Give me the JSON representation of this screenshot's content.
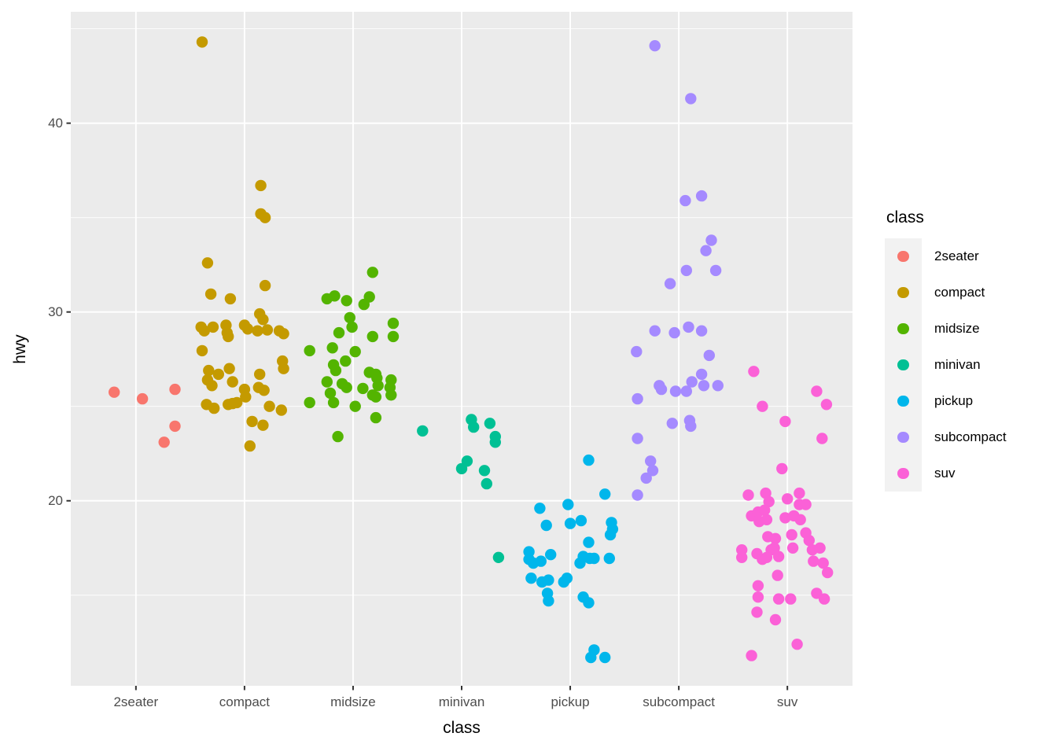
{
  "page": {
    "background": "#FFFFFF"
  },
  "chart_data": {
    "type": "scatter",
    "title": "",
    "xlabel": "class",
    "ylabel": "hwy",
    "categories": [
      "2seater",
      "compact",
      "midsize",
      "minivan",
      "pickup",
      "subcompact",
      "suv"
    ],
    "xlim": [
      0.4,
      7.6
    ],
    "ylim": [
      10.2,
      45.9
    ],
    "y_major_ticks": [
      {
        "value": 20,
        "label": "20"
      },
      {
        "value": 30,
        "label": "30"
      },
      {
        "value": 40,
        "label": "40"
      }
    ],
    "y_minor_ticks": [
      15,
      25,
      35,
      45
    ],
    "grid": {
      "horizontal": "major and minor",
      "vertical": "major at each category"
    },
    "panel_background": "#EBEBEB",
    "grid_color": "#FFFFFF",
    "tick_label_color": "#4D4D4D",
    "tick_mark_color": "#333333",
    "point_radius": 7.2,
    "legend": {
      "title": "class",
      "position": "right",
      "key_background": "#F2F2F2"
    },
    "series": [
      {
        "name": "2seater",
        "color": "#F8766D",
        "points": [
          [
            0.8,
            25.75
          ],
          [
            1.06,
            25.4
          ],
          [
            1.36,
            25.9
          ],
          [
            1.36,
            23.95
          ],
          [
            1.26,
            23.1
          ]
        ]
      },
      {
        "name": "compact",
        "color": "#C49A00",
        "points": [
          [
            1.61,
            44.3
          ],
          [
            2.15,
            36.7
          ],
          [
            2.15,
            35.2
          ],
          [
            2.19,
            35.0
          ],
          [
            1.66,
            32.6
          ],
          [
            2.19,
            31.4
          ],
          [
            1.69,
            30.95
          ],
          [
            1.87,
            30.7
          ],
          [
            2.14,
            29.9
          ],
          [
            2.17,
            29.6
          ],
          [
            1.6,
            29.2
          ],
          [
            1.63,
            29.0
          ],
          [
            1.71,
            29.2
          ],
          [
            1.83,
            29.3
          ],
          [
            1.84,
            28.9
          ],
          [
            2.0,
            29.3
          ],
          [
            2.03,
            29.1
          ],
          [
            2.12,
            29.0
          ],
          [
            2.21,
            29.05
          ],
          [
            2.32,
            29.0
          ],
          [
            2.36,
            28.85
          ],
          [
            1.85,
            28.7
          ],
          [
            1.61,
            27.95
          ],
          [
            2.35,
            27.4
          ],
          [
            2.36,
            27.0
          ],
          [
            1.67,
            26.9
          ],
          [
            1.76,
            26.7
          ],
          [
            1.86,
            27.0
          ],
          [
            2.14,
            26.7
          ],
          [
            1.66,
            26.4
          ],
          [
            1.7,
            26.1
          ],
          [
            1.89,
            26.3
          ],
          [
            2.0,
            25.9
          ],
          [
            2.01,
            25.5
          ],
          [
            2.13,
            26.0
          ],
          [
            2.18,
            25.85
          ],
          [
            1.65,
            25.1
          ],
          [
            1.72,
            24.9
          ],
          [
            1.85,
            25.1
          ],
          [
            1.89,
            25.15
          ],
          [
            1.93,
            25.2
          ],
          [
            2.23,
            25.0
          ],
          [
            2.34,
            24.8
          ],
          [
            2.07,
            24.2
          ],
          [
            2.17,
            24.0
          ],
          [
            2.05,
            22.9
          ]
        ]
      },
      {
        "name": "midsize",
        "color": "#53B400",
        "points": [
          [
            3.18,
            32.1
          ],
          [
            2.76,
            30.7
          ],
          [
            2.83,
            30.85
          ],
          [
            2.94,
            30.6
          ],
          [
            3.15,
            30.8
          ],
          [
            3.1,
            30.4
          ],
          [
            2.97,
            29.7
          ],
          [
            2.99,
            29.2
          ],
          [
            3.37,
            29.4
          ],
          [
            2.87,
            28.9
          ],
          [
            3.18,
            28.7
          ],
          [
            3.37,
            28.7
          ],
          [
            2.6,
            27.95
          ],
          [
            2.81,
            28.1
          ],
          [
            3.02,
            27.9
          ],
          [
            2.93,
            27.4
          ],
          [
            2.82,
            27.2
          ],
          [
            2.84,
            26.9
          ],
          [
            3.15,
            26.8
          ],
          [
            3.21,
            26.7
          ],
          [
            2.76,
            26.3
          ],
          [
            3.22,
            26.5
          ],
          [
            3.23,
            26.1
          ],
          [
            3.35,
            26.4
          ],
          [
            2.9,
            26.2
          ],
          [
            2.94,
            26.0
          ],
          [
            2.79,
            25.7
          ],
          [
            3.09,
            25.95
          ],
          [
            3.18,
            25.6
          ],
          [
            3.34,
            26.0
          ],
          [
            3.35,
            25.6
          ],
          [
            2.6,
            25.2
          ],
          [
            2.82,
            25.2
          ],
          [
            3.02,
            25.0
          ],
          [
            3.21,
            25.5
          ],
          [
            3.21,
            24.4
          ],
          [
            2.86,
            23.4
          ]
        ]
      },
      {
        "name": "minivan",
        "color": "#00C094",
        "points": [
          [
            3.64,
            23.7
          ],
          [
            4.09,
            24.3
          ],
          [
            4.11,
            23.9
          ],
          [
            4.26,
            24.1
          ],
          [
            4.31,
            23.4
          ],
          [
            4.31,
            23.1
          ],
          [
            4.05,
            22.1
          ],
          [
            4.0,
            21.7
          ],
          [
            4.21,
            21.6
          ],
          [
            4.23,
            20.9
          ],
          [
            4.34,
            17.0
          ]
        ]
      },
      {
        "name": "pickup",
        "color": "#00B6EB",
        "points": [
          [
            5.17,
            22.15
          ],
          [
            5.32,
            20.35
          ],
          [
            4.98,
            19.8
          ],
          [
            4.72,
            19.6
          ],
          [
            5.0,
            18.8
          ],
          [
            5.1,
            18.95
          ],
          [
            4.78,
            18.7
          ],
          [
            5.38,
            18.85
          ],
          [
            5.39,
            18.5
          ],
          [
            5.37,
            18.2
          ],
          [
            5.17,
            17.8
          ],
          [
            4.62,
            17.3
          ],
          [
            4.62,
            16.9
          ],
          [
            4.66,
            16.7
          ],
          [
            4.73,
            16.8
          ],
          [
            4.82,
            17.15
          ],
          [
            5.12,
            17.05
          ],
          [
            5.09,
            16.7
          ],
          [
            5.18,
            16.95
          ],
          [
            5.22,
            16.95
          ],
          [
            5.36,
            16.95
          ],
          [
            4.64,
            15.9
          ],
          [
            4.74,
            15.7
          ],
          [
            4.8,
            15.8
          ],
          [
            4.94,
            15.7
          ],
          [
            4.97,
            15.9
          ],
          [
            4.79,
            15.1
          ],
          [
            4.8,
            14.7
          ],
          [
            5.12,
            14.9
          ],
          [
            5.17,
            14.6
          ],
          [
            5.22,
            12.1
          ],
          [
            5.19,
            11.7
          ],
          [
            5.32,
            11.7
          ]
        ]
      },
      {
        "name": "subcompact",
        "color": "#A58AFF",
        "points": [
          [
            5.78,
            44.1
          ],
          [
            6.11,
            41.3
          ],
          [
            6.21,
            36.15
          ],
          [
            6.06,
            35.9
          ],
          [
            6.3,
            33.8
          ],
          [
            6.25,
            33.25
          ],
          [
            6.07,
            32.2
          ],
          [
            6.34,
            32.2
          ],
          [
            5.92,
            31.5
          ],
          [
            5.78,
            29.0
          ],
          [
            5.96,
            28.9
          ],
          [
            6.09,
            29.2
          ],
          [
            6.21,
            29.0
          ],
          [
            5.61,
            27.9
          ],
          [
            6.28,
            27.7
          ],
          [
            6.21,
            26.7
          ],
          [
            5.82,
            26.1
          ],
          [
            5.84,
            25.9
          ],
          [
            5.97,
            25.8
          ],
          [
            6.07,
            25.8
          ],
          [
            6.12,
            26.3
          ],
          [
            6.23,
            26.1
          ],
          [
            6.36,
            26.1
          ],
          [
            5.62,
            25.4
          ],
          [
            5.94,
            24.1
          ],
          [
            6.1,
            24.25
          ],
          [
            6.11,
            23.95
          ],
          [
            5.62,
            23.3
          ],
          [
            5.74,
            22.1
          ],
          [
            5.76,
            21.6
          ],
          [
            5.7,
            21.2
          ],
          [
            5.62,
            20.3
          ]
        ]
      },
      {
        "name": "suv",
        "color": "#FB61D7",
        "points": [
          [
            6.69,
            26.85
          ],
          [
            7.27,
            25.8
          ],
          [
            6.77,
            25.0
          ],
          [
            7.36,
            25.1
          ],
          [
            6.98,
            24.2
          ],
          [
            7.32,
            23.3
          ],
          [
            6.95,
            21.7
          ],
          [
            6.64,
            20.3
          ],
          [
            6.8,
            20.4
          ],
          [
            6.83,
            19.95
          ],
          [
            7.0,
            20.1
          ],
          [
            7.11,
            20.4
          ],
          [
            7.11,
            19.8
          ],
          [
            7.17,
            19.8
          ],
          [
            6.67,
            19.2
          ],
          [
            6.73,
            19.4
          ],
          [
            6.79,
            19.5
          ],
          [
            6.74,
            18.9
          ],
          [
            6.81,
            19.0
          ],
          [
            6.98,
            19.1
          ],
          [
            7.06,
            19.2
          ],
          [
            7.12,
            19.0
          ],
          [
            6.82,
            18.1
          ],
          [
            6.89,
            18.0
          ],
          [
            7.04,
            18.2
          ],
          [
            7.17,
            18.3
          ],
          [
            7.2,
            17.9
          ],
          [
            6.58,
            17.4
          ],
          [
            6.58,
            17.0
          ],
          [
            6.72,
            17.2
          ],
          [
            6.77,
            16.9
          ],
          [
            6.85,
            17.4
          ],
          [
            6.88,
            17.5
          ],
          [
            6.81,
            17.0
          ],
          [
            6.92,
            17.05
          ],
          [
            7.05,
            17.5
          ],
          [
            7.23,
            17.4
          ],
          [
            7.3,
            17.5
          ],
          [
            7.24,
            16.8
          ],
          [
            7.33,
            16.7
          ],
          [
            7.37,
            16.2
          ],
          [
            6.91,
            16.05
          ],
          [
            6.73,
            15.5
          ],
          [
            6.73,
            14.9
          ],
          [
            6.92,
            14.8
          ],
          [
            7.03,
            14.8
          ],
          [
            7.27,
            15.1
          ],
          [
            7.34,
            14.8
          ],
          [
            6.72,
            14.1
          ],
          [
            6.89,
            13.7
          ],
          [
            7.09,
            12.4
          ],
          [
            6.67,
            11.8
          ]
        ]
      }
    ]
  }
}
